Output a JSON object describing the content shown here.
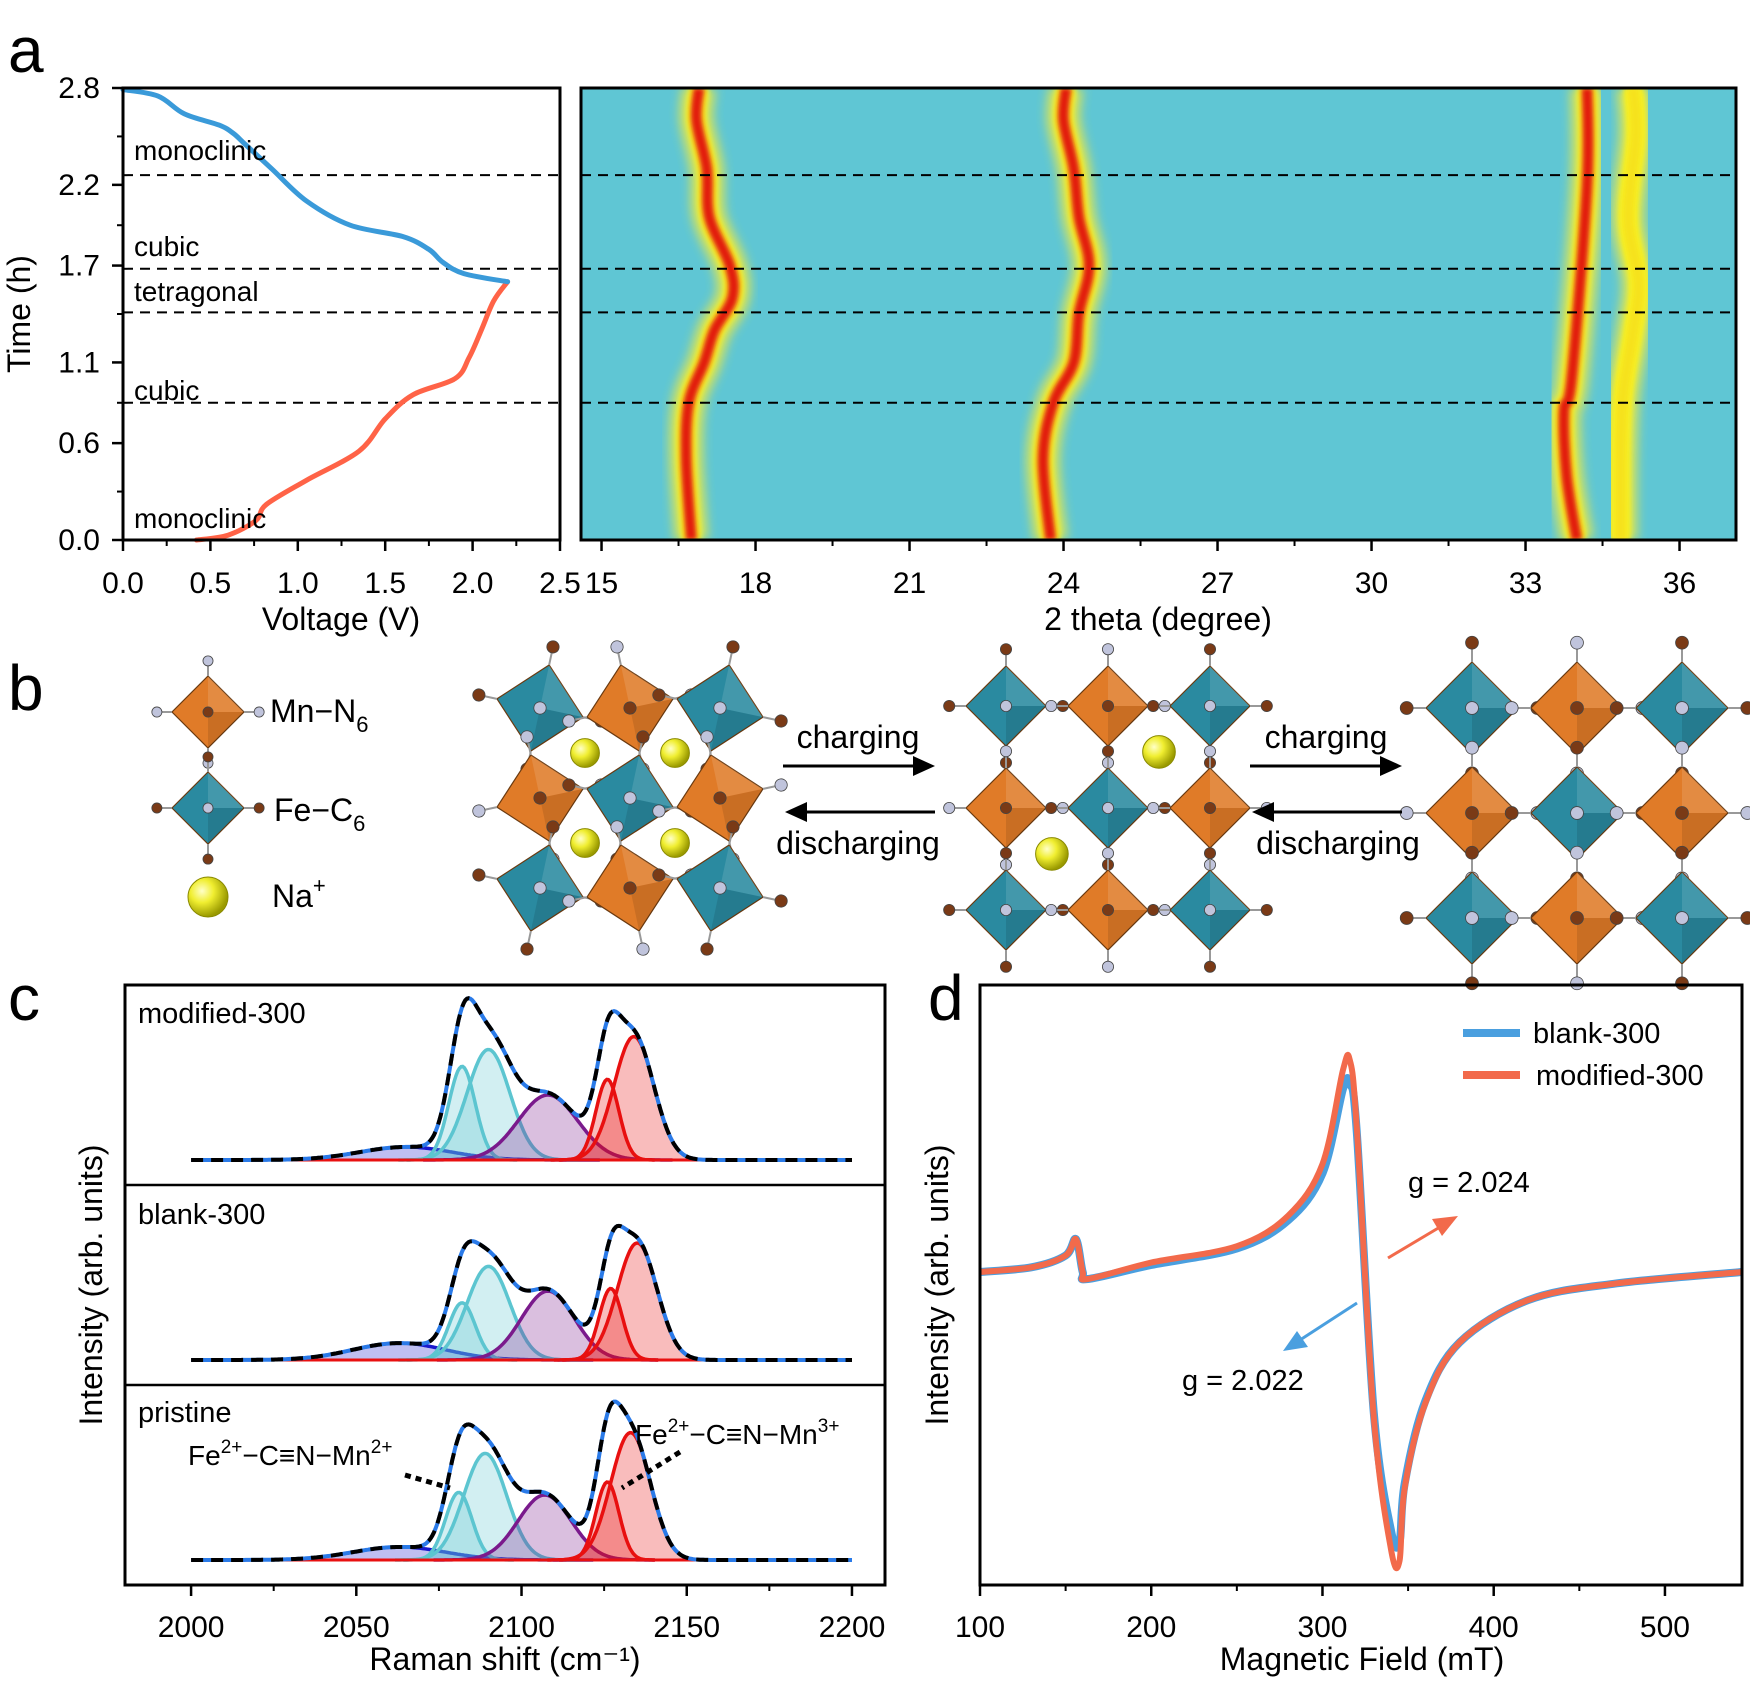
{
  "panel_labels": {
    "a": "a",
    "b": "b",
    "c": "c",
    "d": "d"
  },
  "chart_data": [
    {
      "id": "a-left",
      "type": "line",
      "xlabel": "Voltage (V)",
      "ylabel": "Time (h)",
      "xlim": [
        0,
        2.5
      ],
      "ylim": [
        0,
        2.8
      ],
      "xticks": [
        "0.0",
        "0.5",
        "1.0",
        "1.5",
        "2.0",
        "2.5"
      ],
      "yticks": [
        "0.0",
        "0.6",
        "1.1",
        "1.7",
        "2.2",
        "2.8"
      ],
      "phase_lines": [
        0.85,
        1.41,
        1.68,
        2.26
      ],
      "phase_labels": [
        "monoclinic",
        "cubic",
        "tetragonal",
        "cubic",
        "monoclinic"
      ],
      "series": [
        {
          "name": "discharge",
          "color": "#ff6347",
          "points": [
            [
              0.42,
              0
            ],
            [
              0.6,
              0.03
            ],
            [
              0.76,
              0.12
            ],
            [
              0.82,
              0.22
            ],
            [
              1.05,
              0.37
            ],
            [
              1.35,
              0.55
            ],
            [
              1.5,
              0.75
            ],
            [
              1.66,
              0.9
            ],
            [
              1.9,
              1.0
            ],
            [
              1.98,
              1.13
            ],
            [
              2.05,
              1.3
            ],
            [
              2.12,
              1.48
            ],
            [
              2.2,
              1.6
            ]
          ]
        },
        {
          "name": "charge",
          "color": "#3a9ad9",
          "points": [
            [
              2.2,
              1.6
            ],
            [
              1.95,
              1.65
            ],
            [
              1.83,
              1.72
            ],
            [
              1.75,
              1.8
            ],
            [
              1.6,
              1.88
            ],
            [
              1.3,
              1.95
            ],
            [
              1.05,
              2.1
            ],
            [
              0.85,
              2.3
            ],
            [
              0.7,
              2.45
            ],
            [
              0.63,
              2.52
            ],
            [
              0.55,
              2.57
            ],
            [
              0.35,
              2.64
            ],
            [
              0.2,
              2.75
            ],
            [
              0.0,
              2.79
            ]
          ]
        }
      ]
    },
    {
      "id": "a-right",
      "type": "heatmap",
      "xlabel": "2 theta (degree)",
      "xlim": [
        14.6,
        37.1
      ],
      "ylim": [
        0,
        2.8
      ],
      "xticks": [
        "15",
        "18",
        "21",
        "24",
        "27",
        "30",
        "33",
        "36"
      ],
      "background_color": "#5fc6d4",
      "phase_lines": [
        0.85,
        1.41,
        1.68,
        2.26
      ],
      "ridges": [
        {
          "points": [
            [
              16.75,
              0
            ],
            [
              16.65,
              0.5
            ],
            [
              16.7,
              0.85
            ],
            [
              17.0,
              1.1
            ],
            [
              17.2,
              1.3
            ],
            [
              17.55,
              1.5
            ],
            [
              17.5,
              1.7
            ],
            [
              17.1,
              2.0
            ],
            [
              17.05,
              2.3
            ],
            [
              16.85,
              2.6
            ],
            [
              16.9,
              2.8
            ]
          ],
          "color": "#e21d10"
        },
        {
          "points": [
            [
              23.75,
              0
            ],
            [
              23.6,
              0.5
            ],
            [
              23.8,
              0.85
            ],
            [
              24.2,
              1.1
            ],
            [
              24.3,
              1.4
            ],
            [
              24.5,
              1.7
            ],
            [
              24.3,
              2.0
            ],
            [
              24.2,
              2.3
            ],
            [
              24.0,
              2.6
            ],
            [
              24.05,
              2.8
            ]
          ],
          "color": "#e21d10"
        },
        {
          "points": [
            [
              34.0,
              0
            ],
            [
              33.8,
              0.4
            ],
            [
              33.75,
              0.8
            ],
            [
              33.9,
              1.0
            ],
            [
              34.2,
              2.2
            ],
            [
              34.2,
              2.8
            ]
          ],
          "color": "#e21d10"
        },
        {
          "points": [
            [
              34.85,
              0
            ],
            [
              34.85,
              0.5
            ],
            [
              34.9,
              0.9
            ],
            [
              35.1,
              1.3
            ],
            [
              35.2,
              1.6
            ],
            [
              35.0,
              2.0
            ],
            [
              35.15,
              2.5
            ],
            [
              35.1,
              2.8
            ]
          ],
          "color": "#f6e21a"
        }
      ]
    },
    {
      "id": "c",
      "type": "line",
      "xlabel": "Raman shift (cm⁻¹)",
      "ylabel": "Intensity (arb. units)",
      "xlim": [
        1980,
        2210
      ],
      "xticks": [
        "2000",
        "2050",
        "2100",
        "2150",
        "2200"
      ],
      "panels": [
        {
          "label": "modified-300",
          "peaks": [
            {
              "c": 2065,
              "w": 14,
              "h": 0.1,
              "color": "#1a1acc"
            },
            {
              "c": 2082,
              "w": 4,
              "h": 0.72,
              "color": "#5cc5d0"
            },
            {
              "c": 2090,
              "w": 6.5,
              "h": 0.85,
              "color": "#5cc5d0"
            },
            {
              "c": 2108,
              "w": 9,
              "h": 0.5,
              "color": "#7a1a8c"
            },
            {
              "c": 2126,
              "w": 3.5,
              "h": 0.62,
              "color": "#e81010"
            },
            {
              "c": 2134,
              "w": 6,
              "h": 0.95,
              "color": "#e81010"
            }
          ]
        },
        {
          "label": "blank-300",
          "peaks": [
            {
              "c": 2063,
              "w": 14,
              "h": 0.13,
              "color": "#1a1acc"
            },
            {
              "c": 2082,
              "w": 4,
              "h": 0.44,
              "color": "#5cc5d0"
            },
            {
              "c": 2090,
              "w": 6.5,
              "h": 0.72,
              "color": "#5cc5d0"
            },
            {
              "c": 2108,
              "w": 8,
              "h": 0.53,
              "color": "#7a1a8c"
            },
            {
              "c": 2127,
              "w": 3.5,
              "h": 0.55,
              "color": "#e81010"
            },
            {
              "c": 2135,
              "w": 6,
              "h": 0.9,
              "color": "#e81010"
            }
          ]
        },
        {
          "label": "pristine",
          "peaks": [
            {
              "c": 2063,
              "w": 14,
              "h": 0.1,
              "color": "#1a1acc"
            },
            {
              "c": 2081,
              "w": 4,
              "h": 0.52,
              "color": "#5cc5d0"
            },
            {
              "c": 2089,
              "w": 6.5,
              "h": 0.82,
              "color": "#5cc5d0"
            },
            {
              "c": 2107,
              "w": 8,
              "h": 0.5,
              "color": "#7a1a8c"
            },
            {
              "c": 2126,
              "w": 3.5,
              "h": 0.6,
              "color": "#e81010"
            },
            {
              "c": 2133,
              "w": 6,
              "h": 0.98,
              "color": "#e81010"
            }
          ]
        }
      ],
      "annotations": [
        {
          "base": "Fe",
          "sup1": "2+",
          "mid": "−C≡N−Mn",
          "sup2": "2+"
        },
        {
          "base": "Fe",
          "sup1": "2+",
          "mid": "−C≡N−Mn",
          "sup2": "3+"
        }
      ]
    },
    {
      "id": "d",
      "type": "line",
      "xlabel": "Magnetic Field (mT)",
      "ylabel": "Intensity (arb. units)",
      "xlim": [
        100,
        545
      ],
      "xticks": [
        "100",
        "200",
        "300",
        "400",
        "500"
      ],
      "legend": [
        "blank-300",
        "modified-300"
      ],
      "annotations": [
        "g = 2.024",
        "g = 2.022"
      ],
      "series": [
        {
          "name": "blank-300",
          "color": "#4a9fdf",
          "points": [
            [
              100,
              0.0
            ],
            [
              130,
              0.02
            ],
            [
              150,
              0.07
            ],
            [
              156,
              0.14
            ],
            [
              160,
              0.0
            ],
            [
              163,
              -0.03
            ],
            [
              200,
              0.03
            ],
            [
              250,
              0.1
            ],
            [
              280,
              0.22
            ],
            [
              300,
              0.42
            ],
            [
              312,
              0.78
            ],
            [
              316,
              0.8
            ],
            [
              320,
              0.6
            ],
            [
              330,
              -0.6
            ],
            [
              340,
              -1.1
            ],
            [
              345,
              -1.15
            ],
            [
              348,
              -0.9
            ],
            [
              360,
              -0.55
            ],
            [
              380,
              -0.3
            ],
            [
              420,
              -0.12
            ],
            [
              470,
              -0.05
            ],
            [
              545,
              0.0
            ]
          ]
        },
        {
          "name": "modified-300",
          "color": "#f26a4b",
          "points": [
            [
              100,
              0.0
            ],
            [
              130,
              0.02
            ],
            [
              150,
              0.07
            ],
            [
              156,
              0.14
            ],
            [
              160,
              0.0
            ],
            [
              163,
              -0.03
            ],
            [
              200,
              0.04
            ],
            [
              250,
              0.11
            ],
            [
              280,
              0.24
            ],
            [
              300,
              0.46
            ],
            [
              312,
              0.86
            ],
            [
              316,
              0.9
            ],
            [
              320,
              0.62
            ],
            [
              330,
              -0.62
            ],
            [
              340,
              -1.18
            ],
            [
              345,
              -1.23
            ],
            [
              348,
              -0.92
            ],
            [
              360,
              -0.56
            ],
            [
              380,
              -0.3
            ],
            [
              420,
              -0.12
            ],
            [
              470,
              -0.05
            ],
            [
              545,
              0.0
            ]
          ]
        }
      ]
    }
  ],
  "panel_b": {
    "legend": [
      {
        "base": "Mn−N",
        "sub": "6"
      },
      {
        "base": "Fe−C",
        "sub": "6"
      },
      {
        "base": "Na",
        "sup": "+"
      }
    ],
    "arrows": [
      "charging",
      "discharging",
      "charging",
      "discharging"
    ],
    "colors": {
      "mn": "#e07b28",
      "fe": "#2a8aa0",
      "na": "#f0ee30",
      "c_atom": "#7a3a16",
      "n_atom": "#c0c4dc"
    }
  }
}
